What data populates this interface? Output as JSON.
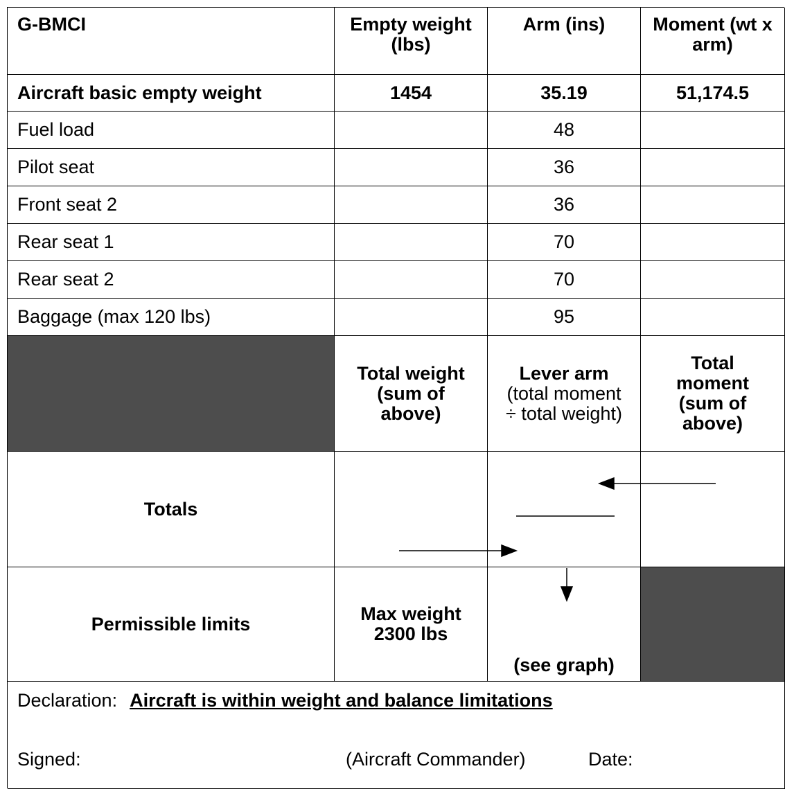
{
  "table": {
    "header": [
      "G-BMCI",
      "Empty weight (lbs)",
      "Arm (ins)",
      "Moment (wt x arm)"
    ],
    "basic_row": [
      "Aircraft basic empty weight",
      "1454",
      "35.19",
      "51,174.5"
    ],
    "rows": [
      [
        "Fuel load",
        "48"
      ],
      [
        "Pilot seat",
        "36"
      ],
      [
        "Front seat 2",
        "36"
      ],
      [
        "Rear seat 1",
        "70"
      ],
      [
        "Rear seat 2",
        "70"
      ],
      [
        "Baggage (max 120 lbs)",
        "95"
      ]
    ],
    "totals_header": {
      "weight": "Total weight (sum of above)",
      "lever_arm": "Lever arm",
      "lever_arm_note": "(total moment ÷ total weight)",
      "moment": "Total moment (sum of above)"
    },
    "totals_label": "Totals",
    "limits": {
      "label": "Permissible limits",
      "max_weight": "Max weight 2300 lbs",
      "arm": "(see graph)"
    }
  },
  "declaration": {
    "label": "Declaration:",
    "statement": "Aircraft is within weight and balance limitations",
    "signed": "Signed:",
    "role": "(Aircraft Commander)",
    "date": "Date:"
  }
}
